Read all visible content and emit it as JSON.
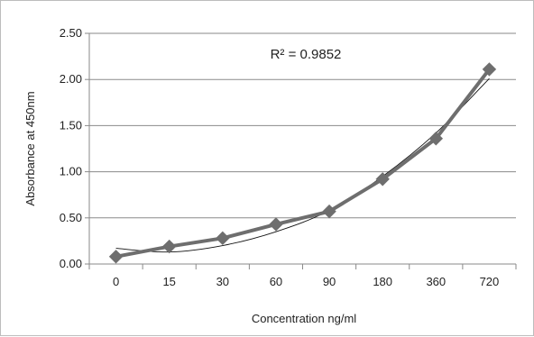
{
  "chart_data": {
    "type": "line",
    "title": "",
    "xlabel": "Concentration ng/ml",
    "ylabel": "Absorbance at 450nm",
    "categories": [
      "0",
      "15",
      "30",
      "60",
      "90",
      "180",
      "360",
      "720"
    ],
    "series": [
      {
        "values": [
          0.08,
          0.19,
          0.28,
          0.43,
          0.57,
          0.92,
          1.36,
          2.11
        ],
        "color": "#6e6e6e",
        "marker": "diamond"
      }
    ],
    "trendline": {
      "type": "polynomial",
      "color": "#111111",
      "values": [
        0.17,
        0.13,
        0.2,
        0.35,
        0.58,
        0.95,
        1.42,
        2.01
      ]
    },
    "annotations": [
      "R² = 0.9852"
    ],
    "ylim": [
      0,
      2.5
    ],
    "yticks": [
      "0.00",
      "0.50",
      "1.00",
      "1.50",
      "2.00",
      "2.50"
    ],
    "grid": true,
    "legend": "none"
  }
}
